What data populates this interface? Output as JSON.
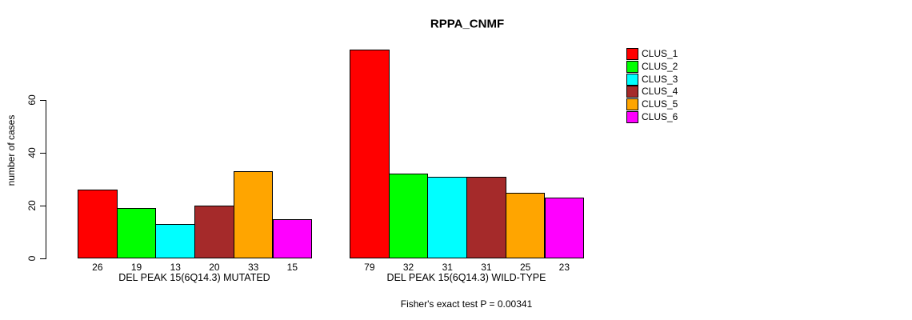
{
  "title": "RPPA_CNMF",
  "y_axis": {
    "label": "number of cases",
    "ticks": [
      0,
      20,
      40,
      60
    ]
  },
  "footer_note": "Fisher's exact test P = 0.00341",
  "legend": {
    "entries": [
      {
        "label": "CLUS_1",
        "color": "#FF0000"
      },
      {
        "label": "CLUS_2",
        "color": "#00FF00"
      },
      {
        "label": "CLUS_3",
        "color": "#00FFFF"
      },
      {
        "label": "CLUS_4",
        "color": "#A52A2A"
      },
      {
        "label": "CLUS_5",
        "color": "#FFA500"
      },
      {
        "label": "CLUS_6",
        "color": "#FF00FF"
      }
    ]
  },
  "chart_data": {
    "type": "bar",
    "title": "RPPA_CNMF",
    "xlabel": "",
    "ylabel": "number of cases",
    "ylim": [
      0,
      80
    ],
    "yticks": [
      0,
      20,
      40,
      60
    ],
    "grid": false,
    "legend_position": "top-right",
    "clusters": [
      "CLUS_1",
      "CLUS_2",
      "CLUS_3",
      "CLUS_4",
      "CLUS_5",
      "CLUS_6"
    ],
    "colors": [
      "#FF0000",
      "#00FF00",
      "#00FFFF",
      "#A52A2A",
      "#FFA500",
      "#FF00FF"
    ],
    "groups": [
      {
        "label": "DEL PEAK 15(6Q14.3) MUTATED",
        "values": [
          26,
          19,
          13,
          20,
          33,
          15
        ]
      },
      {
        "label": "DEL PEAK 15(6Q14.3) WILD-TYPE",
        "values": [
          79,
          32,
          31,
          31,
          25,
          23
        ]
      }
    ],
    "annotation": "Fisher's exact test P = 0.00341"
  }
}
